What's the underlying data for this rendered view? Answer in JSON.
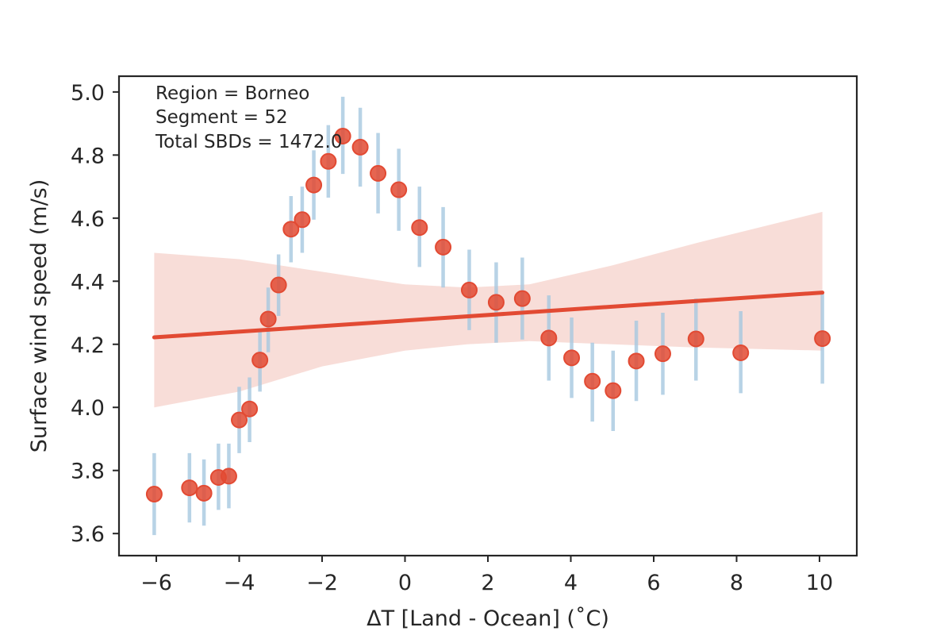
{
  "chart_data": {
    "type": "scatter",
    "xlabel": "ΔT [Land - Ocean] (˚C)",
    "ylabel": "Surface wind speed (m/s)",
    "xlim": [
      -6.9,
      10.9
    ],
    "ylim": [
      3.53,
      5.05
    ],
    "x_ticks": [
      -6,
      -4,
      -2,
      0,
      2,
      4,
      6,
      8,
      10
    ],
    "x_tick_labels": [
      "−6",
      "−4",
      "−2",
      "0",
      "2",
      "4",
      "6",
      "8",
      "10"
    ],
    "y_ticks": [
      3.6,
      3.8,
      4.0,
      4.2,
      4.4,
      4.6,
      4.8,
      5.0
    ],
    "y_tick_labels": [
      "3.6",
      "3.8",
      "4.0",
      "4.2",
      "4.4",
      "4.6",
      "4.8",
      "5.0"
    ],
    "grid": false,
    "annotations": [
      "Region = Borneo",
      "Segment = 52",
      "Total SBDs = 1472.0"
    ],
    "colors": {
      "points": "#e24a33",
      "errorbars": "#a6c8e0",
      "fit_line": "#e24a33",
      "ci_band": "#f6d2cb"
    },
    "points": [
      {
        "x": -6.05,
        "y": 3.725,
        "lo": 3.595,
        "hi": 3.855
      },
      {
        "x": -5.2,
        "y": 3.745,
        "lo": 3.635,
        "hi": 3.855
      },
      {
        "x": -4.85,
        "y": 3.728,
        "lo": 3.625,
        "hi": 3.835
      },
      {
        "x": -4.5,
        "y": 3.778,
        "lo": 3.675,
        "hi": 3.885
      },
      {
        "x": -4.25,
        "y": 3.782,
        "lo": 3.68,
        "hi": 3.885
      },
      {
        "x": -4.0,
        "y": 3.96,
        "lo": 3.855,
        "hi": 4.065
      },
      {
        "x": -3.75,
        "y": 3.995,
        "lo": 3.89,
        "hi": 4.095
      },
      {
        "x": -3.5,
        "y": 4.15,
        "lo": 4.05,
        "hi": 4.245
      },
      {
        "x": -3.3,
        "y": 4.28,
        "lo": 4.175,
        "hi": 4.38
      },
      {
        "x": -3.05,
        "y": 4.388,
        "lo": 4.29,
        "hi": 4.485
      },
      {
        "x": -2.75,
        "y": 4.565,
        "lo": 4.46,
        "hi": 4.67
      },
      {
        "x": -2.48,
        "y": 4.595,
        "lo": 4.49,
        "hi": 4.7
      },
      {
        "x": -2.2,
        "y": 4.705,
        "lo": 4.595,
        "hi": 4.815
      },
      {
        "x": -1.85,
        "y": 4.78,
        "lo": 4.665,
        "hi": 4.895
      },
      {
        "x": -1.5,
        "y": 4.86,
        "lo": 4.74,
        "hi": 4.985
      },
      {
        "x": -1.08,
        "y": 4.825,
        "lo": 4.7,
        "hi": 4.95
      },
      {
        "x": -0.65,
        "y": 4.742,
        "lo": 4.615,
        "hi": 4.87
      },
      {
        "x": -0.15,
        "y": 4.69,
        "lo": 4.56,
        "hi": 4.82
      },
      {
        "x": 0.35,
        "y": 4.57,
        "lo": 4.445,
        "hi": 4.7
      },
      {
        "x": 0.92,
        "y": 4.508,
        "lo": 4.38,
        "hi": 4.635
      },
      {
        "x": 1.55,
        "y": 4.372,
        "lo": 4.245,
        "hi": 4.5
      },
      {
        "x": 2.2,
        "y": 4.333,
        "lo": 4.205,
        "hi": 4.46
      },
      {
        "x": 2.83,
        "y": 4.345,
        "lo": 4.215,
        "hi": 4.475
      },
      {
        "x": 3.47,
        "y": 4.22,
        "lo": 4.085,
        "hi": 4.355
      },
      {
        "x": 4.02,
        "y": 4.157,
        "lo": 4.03,
        "hi": 4.285
      },
      {
        "x": 4.52,
        "y": 4.083,
        "lo": 3.955,
        "hi": 4.205
      },
      {
        "x": 5.02,
        "y": 4.053,
        "lo": 3.925,
        "hi": 4.18
      },
      {
        "x": 5.58,
        "y": 4.147,
        "lo": 4.02,
        "hi": 4.275
      },
      {
        "x": 6.22,
        "y": 4.17,
        "lo": 4.04,
        "hi": 4.3
      },
      {
        "x": 7.02,
        "y": 4.217,
        "lo": 4.085,
        "hi": 4.345
      },
      {
        "x": 8.1,
        "y": 4.173,
        "lo": 4.045,
        "hi": 4.305
      },
      {
        "x": 10.07,
        "y": 4.218,
        "lo": 4.075,
        "hi": 4.36
      }
    ],
    "regression": {
      "line": [
        [
          -6.05,
          4.222
        ],
        [
          10.07,
          4.364
        ]
      ],
      "ci_upper": [
        [
          -6.05,
          4.49
        ],
        [
          -4.0,
          4.47
        ],
        [
          -2.0,
          4.43
        ],
        [
          0.0,
          4.39
        ],
        [
          1.5,
          4.38
        ],
        [
          3.0,
          4.39
        ],
        [
          5.0,
          4.45
        ],
        [
          7.0,
          4.52
        ],
        [
          10.07,
          4.62
        ]
      ],
      "ci_lower": [
        [
          -6.05,
          4.0
        ],
        [
          -4.0,
          4.05
        ],
        [
          -2.0,
          4.13
        ],
        [
          0.0,
          4.18
        ],
        [
          1.5,
          4.2
        ],
        [
          3.0,
          4.21
        ],
        [
          5.0,
          4.2
        ],
        [
          7.0,
          4.19
        ],
        [
          10.07,
          4.18
        ]
      ]
    }
  }
}
